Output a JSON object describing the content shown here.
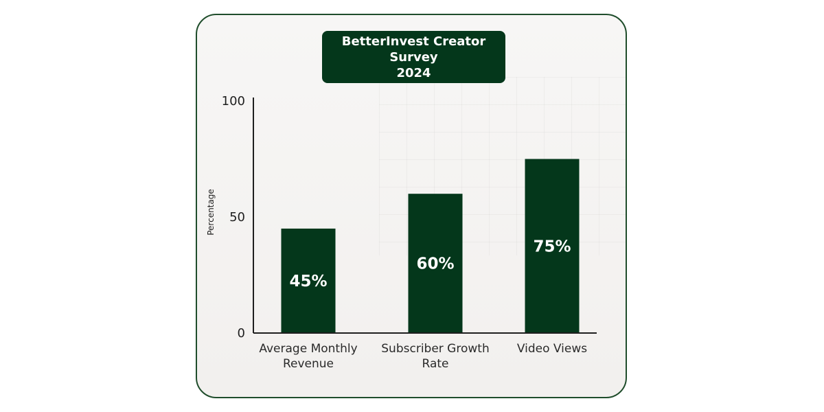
{
  "chart_data": {
    "type": "bar",
    "title": [
      "BetterInvest Creator Survey",
      "2024"
    ],
    "xlabel": "",
    "ylabel": "Percentage",
    "ylim": [
      0,
      100
    ],
    "yticks": [
      "0",
      "50",
      "100"
    ],
    "categories": [
      [
        "Average Monthly",
        "Revenue"
      ],
      [
        "Subscriber Growth",
        "Rate"
      ],
      [
        "Video Views"
      ]
    ],
    "values": [
      45,
      60,
      75
    ],
    "data_labels": [
      "45%",
      "60%",
      "75%"
    ],
    "grid": false,
    "colors": {
      "bar": "#04371b",
      "title_bg": "#04371b",
      "border": "#1f4d2b",
      "axis": "#1e1e1e"
    }
  }
}
